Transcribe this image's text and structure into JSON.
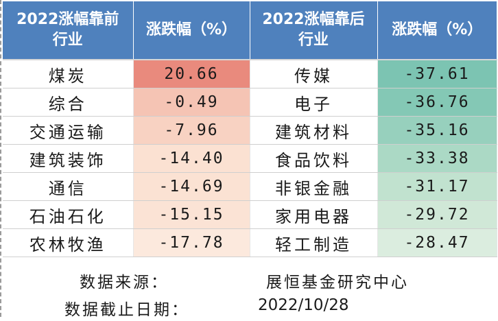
{
  "header": {
    "left_industry": [
      "2022涨幅靠前",
      "行业"
    ],
    "left_change": "涨跌幅（%）",
    "right_industry": [
      "2022涨幅靠后",
      "行业"
    ],
    "right_change": "涨跌幅（%）"
  },
  "rows": [
    {
      "top_name": "煤炭",
      "top_value": "20.66",
      "top_color": "#e98a7d",
      "bottom_name": "传媒",
      "bottom_value": "-37.61",
      "bottom_color": "#7cc4b2"
    },
    {
      "top_name": "综合",
      "top_value": "-0.49",
      "top_color": "#f5c4b4",
      "bottom_name": "电子",
      "bottom_value": "-36.76",
      "bottom_color": "#84c8b5"
    },
    {
      "top_name": "交通运输",
      "top_value": "-7.96",
      "top_color": "#f8d2c2",
      "bottom_name": "建筑材料",
      "bottom_value": "-35.16",
      "bottom_color": "#97d0bd"
    },
    {
      "top_name": "建筑装饰",
      "top_value": "-14.40",
      "top_color": "#fbe1d2",
      "bottom_name": "食品饮料",
      "bottom_value": "-33.38",
      "bottom_color": "#abd9c5"
    },
    {
      "top_name": "通信",
      "top_value": "-14.69",
      "top_color": "#fbe2d3",
      "bottom_name": "非银金融",
      "bottom_value": "-31.17",
      "bottom_color": "#c1e2cf"
    },
    {
      "top_name": "石油石化",
      "top_value": "-15.15",
      "top_color": "#fbe3d5",
      "bottom_name": "家用电器",
      "bottom_value": "-29.72",
      "bottom_color": "#d0e8d7"
    },
    {
      "top_name": "农林牧渔",
      "top_value": "-17.78",
      "top_color": "#fce9dd",
      "bottom_name": "轻工制造",
      "bottom_value": "-28.47",
      "bottom_color": "#dbeddf"
    }
  ],
  "footer": {
    "source_label": "数据来源：",
    "source_value": "展恒基金研究中心",
    "date_label": "数据截止日期：",
    "date_value": "2022/10/28"
  }
}
